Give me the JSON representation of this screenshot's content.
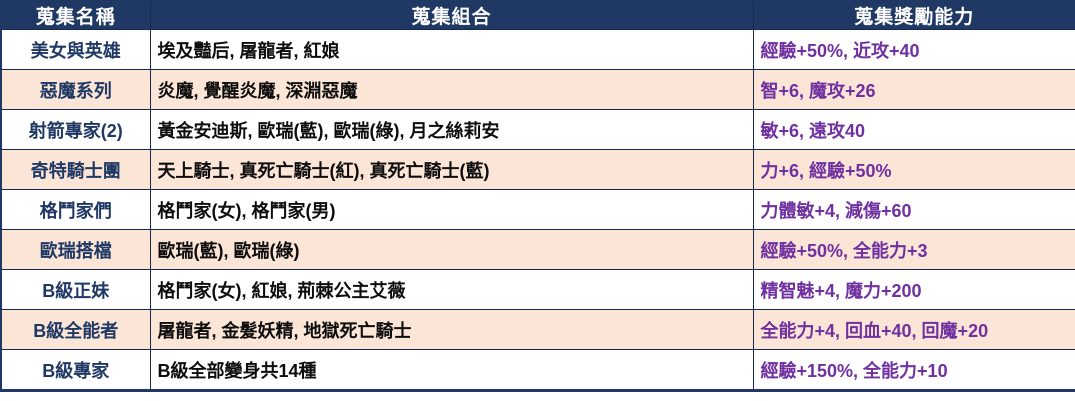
{
  "chart_data": {
    "type": "table",
    "title": "",
    "columns": [
      "蒐集名稱",
      "蒐集組合",
      "蒐集獎勵能力"
    ],
    "rows": [
      {
        "name": "美女與英雄",
        "combo": "埃及豔后, 屠龍者, 紅娘",
        "reward": "經驗+50%, 近攻+40"
      },
      {
        "name": "惡魔系列",
        "combo": "炎魔, 覺醒炎魔, 深淵惡魔",
        "reward": "智+6, 魔攻+26"
      },
      {
        "name": "射箭專家(2)",
        "combo": "黃金安迪斯, 歐瑞(藍), 歐瑞(綠), 月之絲莉安",
        "reward": "敏+6, 遠攻40"
      },
      {
        "name": "奇特騎士團",
        "combo": "天上騎士, 真死亡騎士(紅), 真死亡騎士(藍)",
        "reward": "力+6, 經驗+50%"
      },
      {
        "name": "格鬥家們",
        "combo": "格鬥家(女), 格鬥家(男)",
        "reward": "力體敏+4, 減傷+60"
      },
      {
        "name": "歐瑞搭檔",
        "combo": "歐瑞(藍), 歐瑞(綠)",
        "reward": "經驗+50%, 全能力+3"
      },
      {
        "name": "B級正妹",
        "combo": "格鬥家(女), 紅娘, 荊棘公主艾薇",
        "reward": "精智魅+4, 魔力+200"
      },
      {
        "name": "B級全能者",
        "combo": "屠龍者, 金髮妖精, 地獄死亡騎士",
        "reward": "全能力+4, 回血+40, 回魔+20"
      },
      {
        "name": "B級專家",
        "combo": "B級全部變身共14種",
        "reward": "經驗+150%, 全能力+10"
      }
    ],
    "layout": {
      "grid": true,
      "striped_rows": true,
      "stripe_pattern": "even rows shaded"
    }
  },
  "colors": {
    "header_bg": "#1F3864",
    "header_text": "#FFFFFF",
    "name_text": "#1F3864",
    "combo_text": "#0D0D0D",
    "reward_text": "#7030A0",
    "row_bg": "#FFFFFF",
    "row_alt_bg": "#FBE5D6",
    "border": "#1F3864"
  }
}
